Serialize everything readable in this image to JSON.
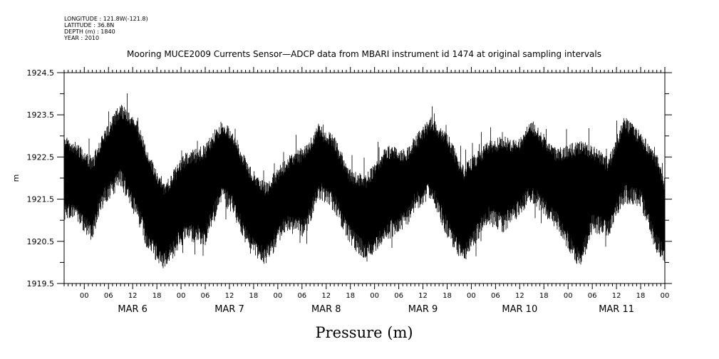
{
  "meta": {
    "longitude": "LONGITUDE : 121.8W(-121.8)",
    "latitude": "LATITUDE : 36.8N",
    "depth": "DEPTH (m) : 1840",
    "year": "YEAR : 2010"
  },
  "chart_data": {
    "type": "line",
    "title": "Mooring MUCE2009 Currents Sensor—ADCP data from MBARI instrument id 1474 at original sampling intervals",
    "xlabel": "Pressure (m)",
    "ylabel": "m",
    "ylim": [
      1919.5,
      1924.5
    ],
    "yticks": [
      "1919.5",
      "1920.5",
      "1921.5",
      "1922.5",
      "1923.5",
      "1924.5"
    ],
    "xlim_hours": [
      -5,
      144
    ],
    "hour_ticks": [
      "00",
      "06",
      "12",
      "18",
      "00",
      "06",
      "12",
      "18",
      "00",
      "06",
      "12",
      "18",
      "00",
      "06",
      "12",
      "18",
      "00",
      "06",
      "12",
      "18",
      "00",
      "06",
      "12",
      "18",
      "00"
    ],
    "day_labels": [
      "MAR  6",
      "MAR  7",
      "MAR  8",
      "MAR  9",
      "MAR 10",
      "MAR 11"
    ],
    "grid": false,
    "series": [
      {
        "color": "#000000",
        "envelope": {
          "hours": [
            -5,
            -2,
            2,
            4,
            9,
            13,
            16,
            20,
            25,
            30,
            34,
            37,
            41,
            45,
            50,
            55,
            58,
            62,
            66,
            70,
            75,
            80,
            82,
            86,
            90,
            94,
            100,
            104,
            107,
            111,
            117,
            123,
            126,
            130,
            134,
            138,
            142,
            144
          ],
          "upper": [
            1923.0,
            1922.9,
            1922.5,
            1923.0,
            1923.8,
            1923.4,
            1922.6,
            1921.9,
            1922.6,
            1922.8,
            1923.4,
            1923.1,
            1922.3,
            1921.9,
            1922.5,
            1922.8,
            1923.3,
            1923.0,
            1922.2,
            1922.1,
            1922.8,
            1922.7,
            1923.0,
            1923.5,
            1923.1,
            1922.3,
            1922.9,
            1923.0,
            1922.9,
            1923.4,
            1922.7,
            1922.9,
            1922.8,
            1922.5,
            1923.5,
            1923.1,
            1922.6,
            1922.0
          ],
          "lower": [
            1921.0,
            1920.9,
            1920.5,
            1921.2,
            1921.8,
            1921.0,
            1920.2,
            1919.8,
            1920.5,
            1920.4,
            1921.4,
            1921.1,
            1920.2,
            1919.9,
            1920.7,
            1920.6,
            1921.5,
            1921.2,
            1920.4,
            1920.0,
            1920.5,
            1920.8,
            1921.2,
            1921.5,
            1920.6,
            1919.9,
            1920.9,
            1920.7,
            1921.0,
            1921.4,
            1920.8,
            1919.8,
            1920.7,
            1920.6,
            1921.4,
            1921.3,
            1920.2,
            1920.0
          ]
        }
      }
    ]
  }
}
